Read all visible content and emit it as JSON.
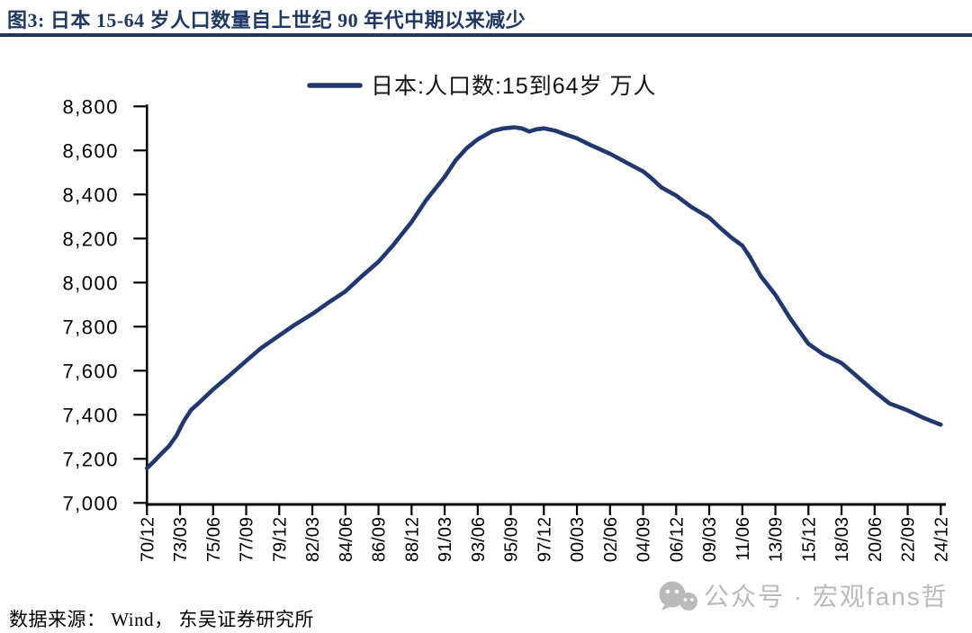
{
  "title": {
    "text": "图3:  日本 15-64 岁人口数量自上世纪 90 年代中期以来减少"
  },
  "footer": {
    "text": "数据来源： Wind， 东吴证券研究所"
  },
  "watermark": {
    "icon": "wechat-icon",
    "text": "公众号 · 宏观fans哲"
  },
  "colors": {
    "title": "#1f3864",
    "rule": "#1f3864",
    "line": "#20386e",
    "axis": "#000000",
    "tick_label": "#000000",
    "legend_text": "#111111",
    "watermark": "#a9a9a9",
    "background": "#ffffff"
  },
  "chart_data": {
    "type": "line",
    "legend": "日本:人口数:15到64岁  万人",
    "unit": "万人",
    "ylim": [
      7000,
      8800
    ],
    "grid": false,
    "legend_position": "top-center",
    "y_tick_labels": [
      "8,800",
      "8,600",
      "8,400",
      "8,200",
      "8,000",
      "7,800",
      "7,600",
      "7,400",
      "7,200",
      "7,000"
    ],
    "y_tick_values": [
      8800,
      8600,
      8400,
      8200,
      8000,
      7800,
      7600,
      7400,
      7200,
      7000
    ],
    "x_tick_labels": [
      "70/12",
      "73/03",
      "75/06",
      "77/09",
      "79/12",
      "82/03",
      "84/06",
      "86/09",
      "88/12",
      "91/03",
      "93/06",
      "95/09",
      "97/12",
      "00/03",
      "02/06",
      "04/09",
      "06/12",
      "09/03",
      "11/06",
      "13/09",
      "15/12",
      "18/03",
      "20/06",
      "22/09",
      "24/12"
    ],
    "quarters_between_x_ticks": 9,
    "series": [
      {
        "name": "日本:人口数:15到64岁 万人",
        "x_unit": "quarters since 1970/12",
        "points": [
          [
            0,
            7157
          ],
          [
            2,
            7190
          ],
          [
            4,
            7225
          ],
          [
            6,
            7258
          ],
          [
            8,
            7305
          ],
          [
            10,
            7370
          ],
          [
            12,
            7422
          ],
          [
            14,
            7452
          ],
          [
            18,
            7515
          ],
          [
            22,
            7572
          ],
          [
            27,
            7645
          ],
          [
            31,
            7702
          ],
          [
            36,
            7760
          ],
          [
            40,
            7806
          ],
          [
            45,
            7858
          ],
          [
            49,
            7905
          ],
          [
            54,
            7960
          ],
          [
            58,
            8022
          ],
          [
            63,
            8095
          ],
          [
            67,
            8170
          ],
          [
            72,
            8275
          ],
          [
            76,
            8375
          ],
          [
            81,
            8480
          ],
          [
            84,
            8555
          ],
          [
            87,
            8610
          ],
          [
            90,
            8650
          ],
          [
            94,
            8688
          ],
          [
            97,
            8700
          ],
          [
            100,
            8705
          ],
          [
            102,
            8700
          ],
          [
            104,
            8686
          ],
          [
            106,
            8696
          ],
          [
            108,
            8700
          ],
          [
            111,
            8690
          ],
          [
            114,
            8672
          ],
          [
            117,
            8655
          ],
          [
            121,
            8622
          ],
          [
            126,
            8585
          ],
          [
            131,
            8540
          ],
          [
            135,
            8505
          ],
          [
            137,
            8478
          ],
          [
            140,
            8432
          ],
          [
            144,
            8395
          ],
          [
            148,
            8345
          ],
          [
            153,
            8295
          ],
          [
            156,
            8248
          ],
          [
            159,
            8205
          ],
          [
            162,
            8168
          ],
          [
            164,
            8118
          ],
          [
            167,
            8030
          ],
          [
            171,
            7945
          ],
          [
            175,
            7838
          ],
          [
            178,
            7768
          ],
          [
            180,
            7722
          ],
          [
            184,
            7675
          ],
          [
            189,
            7635
          ],
          [
            193,
            7578
          ],
          [
            198,
            7505
          ],
          [
            202,
            7452
          ],
          [
            207,
            7420
          ],
          [
            211,
            7388
          ],
          [
            214,
            7368
          ],
          [
            216,
            7355
          ]
        ]
      }
    ]
  }
}
